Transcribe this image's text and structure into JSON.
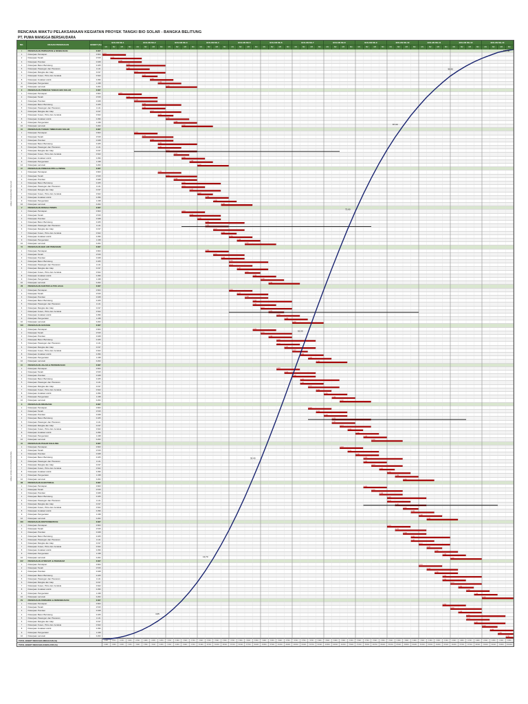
{
  "header": {
    "title1": "RENCANA WAKTU PELAKSANAAN KEGIATAN PROYEK TANGKI BIO SOLAR - BANGKA BELITUNG",
    "title2": "PT. PUMA MANGGA BERSAUDARA"
  },
  "table": {
    "col_no": "NO.",
    "col_uraian": "URAIAN PEKERJAAN",
    "col_bobot": "BOBOT (%)",
    "month_prefix": "BULAN KE-"
  },
  "side_labels": [
    "AREA TANGKI BIO SOLAR",
    "AREA FASILITAS PENDUKUNG"
  ],
  "totals": {
    "row1_label": "TOTAL BOBOT RENCANA MINGGUAN (%)",
    "row2_label": "TOTAL BOBOT RENCANA KOMULATIF (%)"
  },
  "colors": {
    "bar": "#b30000",
    "bar_edge": "#6d0000",
    "curve": "#16216e",
    "header_green": "#47793b",
    "section_row": "#d9e6cf",
    "grid_week": "#dcdcdc",
    "grid_month": "#9a9a9a",
    "summary_line": "#111111",
    "bar_label": "#cc0000"
  },
  "chart_data": {
    "type": "gantt",
    "title": "RENCANA WAKTU PELAKSANAAN KEGIATAN PROYEK TANGKI BIO SOLAR - BANGKA BELITUNG",
    "subtitle": "PT. PUMA MANGGA BERSAUDARA",
    "timeline": {
      "months": 13,
      "weeks_per_month": 4,
      "total_weeks": 52,
      "month_label_prefix": "BULAN KE-",
      "week_labels": [
        "M1",
        "M2",
        "M3",
        "M4"
      ]
    },
    "row_labels_cycle": [
      "Pekerjaan Persiapan",
      "Pekerjaan Tanah",
      "Pekerjaan Pondasi",
      "Pekerjaan Beton Bertulang",
      "Pekerjaan Pasangan dan Plesteran",
      "Pekerjaan Rangka dan Atap",
      "Pekerjaan Kusen, Pintu dan Jendela",
      "Pekerjaan Instalasi Listrik",
      "Pekerjaan Pengecatan",
      "Pekerjaan Lain-lain"
    ],
    "bobot_cycle": [
      0.823,
      0.515,
      0.948,
      0.325,
      1.141,
      0.197,
      0.622,
      0.396,
      1.438,
      0.262
    ],
    "section_bobot_total": "6.667",
    "durs_cycle": [
      3,
      4,
      3,
      5,
      3,
      4,
      2,
      3,
      3,
      4
    ],
    "sections": [
      {
        "no": "I",
        "title": "PEKERJAAN PERSIAPAN & MOBILISASI",
        "starts": [
          0,
          1,
          2,
          3,
          3,
          4,
          5,
          6,
          7,
          8
        ]
      },
      {
        "no": "II",
        "title": "PEKERJAAN PONDASI TANGKI BIO SOLAR",
        "starts": [
          2,
          3,
          4,
          5,
          5,
          6,
          7,
          8,
          9,
          10
        ]
      },
      {
        "no": "III",
        "title": "PEKERJAAN TANGKI TIMBUN BIO SOLAR",
        "starts": [
          4,
          5,
          6,
          7,
          7,
          8,
          9,
          10,
          11,
          12
        ],
        "line": [
          5,
          4,
          30
        ]
      },
      {
        "no": "IV",
        "title": "PEKERJAAN PONDASI PIPA & PIPING",
        "starts": [
          7,
          8,
          9,
          10,
          10,
          11,
          12,
          13,
          14,
          15
        ]
      },
      {
        "no": "V",
        "title": "PEKERJAAN RUMAH POMPA",
        "starts": [
          10,
          11,
          12,
          13,
          13,
          14,
          15,
          16,
          17,
          18
        ],
        "line": [
          4,
          10,
          34
        ]
      },
      {
        "no": "VI",
        "title": "PEKERJAAN BAK AIR PEMADAM",
        "starts": [
          13,
          14,
          15,
          16,
          16,
          17,
          18,
          19,
          20,
          21
        ]
      },
      {
        "no": "VII",
        "title": "PEKERJAAN KANTOR & POS JAGA",
        "starts": [
          16,
          17,
          18,
          19,
          19,
          20,
          21,
          22,
          23,
          24
        ],
        "line": [
          6,
          16,
          40
        ]
      },
      {
        "no": "VIII",
        "title": "PEKERJAAN GUDANG",
        "starts": [
          19,
          20,
          21,
          22,
          22,
          23,
          24,
          25,
          26,
          27
        ]
      },
      {
        "no": "IX",
        "title": "PEKERJAAN JALAN & PERKERASAN",
        "starts": [
          22,
          23,
          24,
          25,
          25,
          26,
          27,
          28,
          29,
          30
        ]
      },
      {
        "no": "X",
        "title": "PEKERJAAN DRAINASE",
        "starts": [
          26,
          27,
          28,
          29,
          29,
          30,
          31,
          32,
          33,
          34
        ],
        "line": [
          3,
          26,
          46
        ]
      },
      {
        "no": "XI",
        "title": "PEKERJAAN PAGAR KELILING",
        "starts": [
          30,
          31,
          32,
          33,
          33,
          34,
          35,
          36,
          37,
          38
        ]
      },
      {
        "no": "XII",
        "title": "PEKERJAAN ELEKTRIKAL",
        "starts": [
          33,
          34,
          35,
          36,
          36,
          37,
          38,
          39,
          40,
          41
        ],
        "line": [
          5,
          33,
          50
        ]
      },
      {
        "no": "XIII",
        "title": "PEKERJAAN INSTRUMENTASI",
        "starts": [
          36,
          37,
          38,
          39,
          39,
          40,
          41,
          42,
          43,
          44
        ]
      },
      {
        "no": "XIV",
        "title": "PEKERJAAN HYDRANT & PEMADAM",
        "starts": [
          40,
          41,
          42,
          43,
          43,
          44,
          45,
          46,
          47,
          48
        ]
      },
      {
        "no": "XV",
        "title": "PEKERJAAN FINISHING & DEMOBILISASI",
        "starts": [
          43,
          44,
          45,
          46,
          46,
          47,
          48,
          49,
          50,
          51
        ]
      }
    ],
    "s_curve": {
      "weekly": [
        0.088,
        0.212,
        0.32,
        0.43,
        0.55,
        0.68,
        0.82,
        0.95,
        1.15,
        1.3,
        1.5,
        1.7,
        1.9,
        2.1,
        2.3,
        2.5,
        2.7,
        2.9,
        3.1,
        3.2,
        3.4,
        3.5,
        3.6,
        3.7,
        3.7,
        3.7,
        3.7,
        3.6,
        3.5,
        3.4,
        3.3,
        3.1,
        2.9,
        2.7,
        2.5,
        2.3,
        2.1,
        1.9,
        1.8,
        1.6,
        1.5,
        1.3,
        1.2,
        1.1,
        0.9,
        0.8,
        0.7,
        0.6,
        0.5,
        0.5,
        0.3,
        0.2
      ],
      "cumulative": [
        0.088,
        0.3,
        0.62,
        1.05,
        1.6,
        2.28,
        3.1,
        4.05,
        5.2,
        6.5,
        8.0,
        9.7,
        11.6,
        13.7,
        16.0,
        18.5,
        21.2,
        24.1,
        27.2,
        30.4,
        33.8,
        37.3,
        40.9,
        44.6,
        48.3,
        52.0,
        55.7,
        59.3,
        62.8,
        66.2,
        69.5,
        72.6,
        75.5,
        78.2,
        80.7,
        83.0,
        85.1,
        87.0,
        88.8,
        90.4,
        91.9,
        93.2,
        94.4,
        95.5,
        96.4,
        97.2,
        97.9,
        98.5,
        99.0,
        99.5,
        99.8,
        100.0
      ],
      "label_weeks": [
        8,
        14,
        20,
        26,
        32,
        38,
        45,
        52
      ],
      "end_label": "100.00"
    }
  }
}
